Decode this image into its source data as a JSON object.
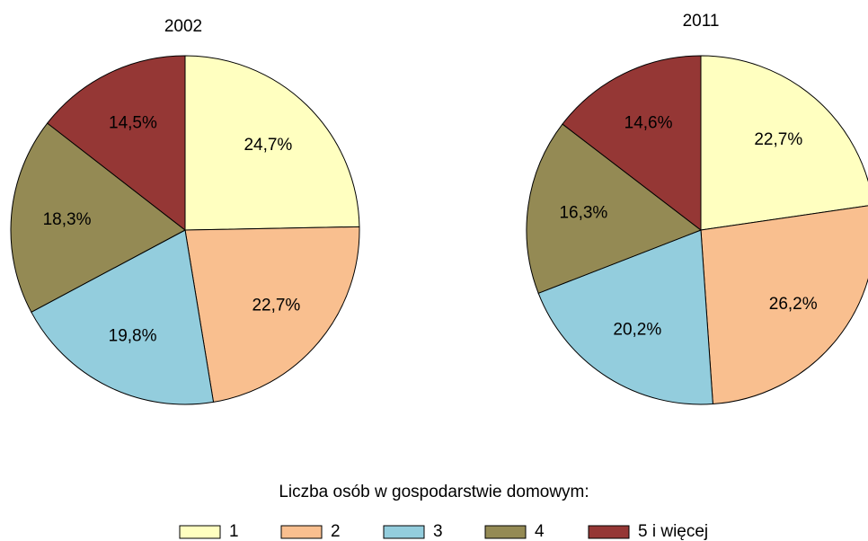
{
  "chart_data": [
    {
      "type": "pie",
      "title": "2002",
      "categories": [
        "1",
        "2",
        "3",
        "4",
        "5 i więcej"
      ],
      "values": [
        24.7,
        22.7,
        19.8,
        18.3,
        14.5
      ],
      "value_labels": [
        "24,7%",
        "22,7%",
        "19,8%",
        "18,3%",
        "14,5%"
      ],
      "colors": [
        "#ffffc0",
        "#f9bf8f",
        "#93cddd",
        "#948a54",
        "#953735"
      ],
      "legend_title": "Liczba osób w gospodarstwie domowym:"
    },
    {
      "type": "pie",
      "title": "2011",
      "categories": [
        "1",
        "2",
        "3",
        "4",
        "5 i więcej"
      ],
      "values": [
        22.7,
        26.2,
        20.2,
        16.3,
        14.6
      ],
      "value_labels": [
        "22,7%",
        "26,2%",
        "20,2%",
        "16,3%",
        "14,6%"
      ],
      "colors": [
        "#ffffc0",
        "#f9bf8f",
        "#93cddd",
        "#948a54",
        "#953735"
      ]
    }
  ]
}
